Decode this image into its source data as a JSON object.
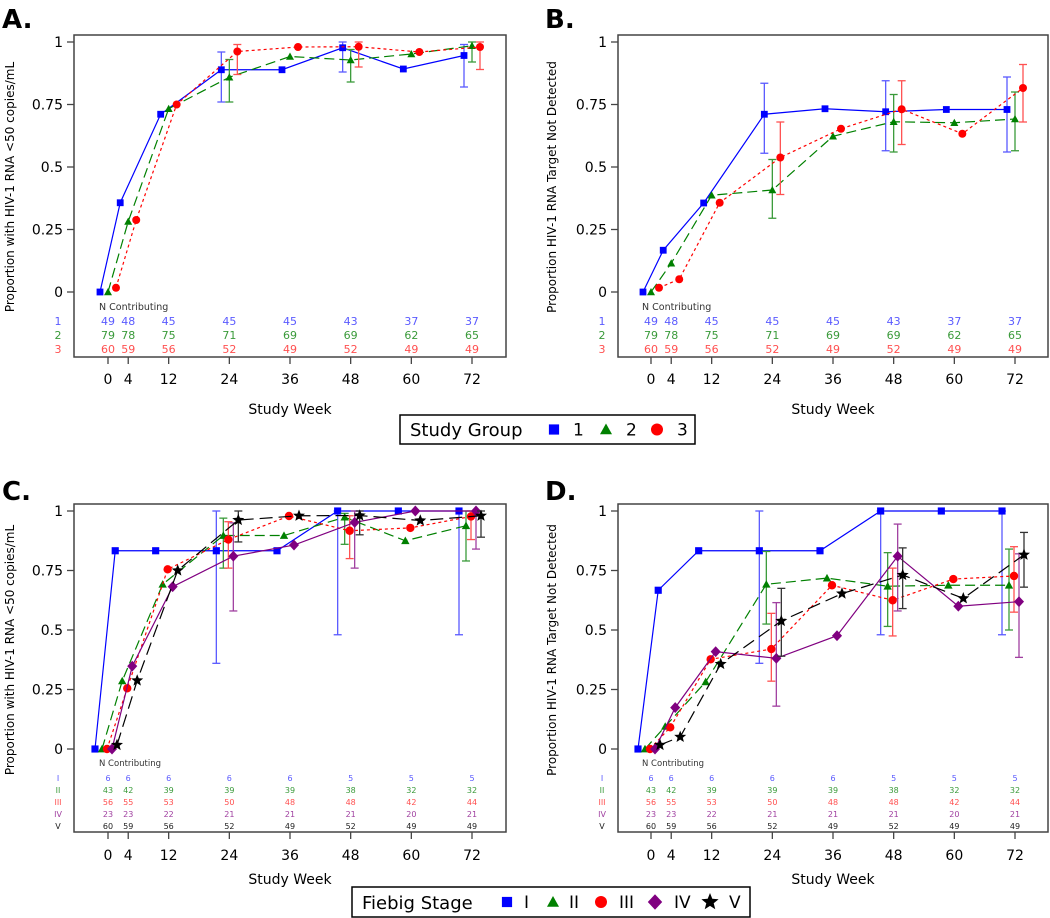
{
  "chart_data": [
    {
      "panel": "A",
      "title": "A.",
      "type": "line",
      "xlabel": "Study  Week",
      "ylabel": "Proportion with HIV-1 RNA <50 copies/mL",
      "x": [
        0,
        4,
        12,
        24,
        36,
        48,
        60,
        72
      ],
      "ylim": [
        0,
        1
      ],
      "yticks": [
        0,
        0.25,
        0.5,
        0.75,
        1
      ],
      "ytick_labels": [
        "0",
        "0.25",
        "0.5",
        "0.75",
        "1"
      ],
      "n_label": "N Contributing",
      "series": [
        {
          "name": "1",
          "color": "#0000ff",
          "marker": "square",
          "dash": "solid",
          "values": [
            0,
            0.357,
            0.711,
            0.889,
            0.889,
            0.977,
            0.892,
            0.946
          ],
          "errors": [
            null,
            null,
            null,
            [
              0.76,
              0.96
            ],
            null,
            [
              0.88,
              1.0
            ],
            null,
            [
              0.82,
              0.99
            ]
          ],
          "n": [
            49,
            48,
            45,
            45,
            45,
            43,
            37,
            37
          ]
        },
        {
          "name": "2",
          "color": "#008000",
          "marker": "triangle",
          "dash": "dashed",
          "values": [
            0,
            0.282,
            0.733,
            0.859,
            0.942,
            0.928,
            0.952,
            0.985
          ],
          "errors": [
            null,
            null,
            null,
            [
              0.76,
              0.93
            ],
            null,
            [
              0.84,
              0.97
            ],
            null,
            [
              0.92,
              1.0
            ]
          ],
          "n": [
            79,
            78,
            75,
            71,
            69,
            69,
            62,
            65
          ]
        },
        {
          "name": "3",
          "color": "#ff0000",
          "marker": "circle",
          "dash": "dotted",
          "values": [
            0.017,
            0.288,
            0.75,
            0.962,
            0.98,
            0.981,
            0.96,
            0.98
          ],
          "errors": [
            null,
            null,
            null,
            [
              0.87,
              0.99
            ],
            null,
            [
              0.9,
              1.0
            ],
            null,
            [
              0.89,
              1.0
            ]
          ],
          "n": [
            60,
            59,
            56,
            52,
            49,
            52,
            49,
            49
          ]
        }
      ]
    },
    {
      "panel": "B",
      "title": "B.",
      "type": "line",
      "xlabel": "Study  Week",
      "ylabel": "Proportion HIV-1 RNA Target Not Detected",
      "x": [
        0,
        4,
        12,
        24,
        36,
        48,
        60,
        72
      ],
      "ylim": [
        0,
        1
      ],
      "yticks": [
        0,
        0.25,
        0.5,
        0.75,
        1
      ],
      "ytick_labels": [
        "0",
        "0.25",
        "0.5",
        "0.75",
        "1"
      ],
      "n_label": "N Contributing",
      "series": [
        {
          "name": "1",
          "color": "#0000ff",
          "marker": "square",
          "dash": "solid",
          "values": [
            0,
            0.167,
            0.356,
            0.711,
            0.733,
            0.721,
            0.73,
            0.73
          ],
          "errors": [
            null,
            null,
            null,
            [
              0.555,
              0.835
            ],
            null,
            [
              0.565,
              0.845
            ],
            null,
            [
              0.56,
              0.86
            ]
          ],
          "n": [
            49,
            48,
            45,
            45,
            45,
            43,
            37,
            37
          ]
        },
        {
          "name": "2",
          "color": "#008000",
          "marker": "triangle",
          "dash": "dashed",
          "values": [
            0,
            0.115,
            0.387,
            0.408,
            0.623,
            0.681,
            0.677,
            0.692
          ],
          "errors": [
            null,
            null,
            null,
            [
              0.295,
              0.53
            ],
            null,
            [
              0.56,
              0.79
            ],
            null,
            [
              0.565,
              0.8
            ]
          ],
          "n": [
            79,
            78,
            75,
            71,
            69,
            69,
            62,
            65
          ]
        },
        {
          "name": "3",
          "color": "#ff0000",
          "marker": "circle",
          "dash": "dotted",
          "values": [
            0.017,
            0.051,
            0.357,
            0.538,
            0.653,
            0.731,
            0.633,
            0.816
          ],
          "errors": [
            null,
            null,
            null,
            [
              0.39,
              0.68
            ],
            null,
            [
              0.59,
              0.845
            ],
            null,
            [
              0.68,
              0.91
            ]
          ],
          "n": [
            60,
            59,
            56,
            52,
            49,
            52,
            49,
            49
          ]
        }
      ]
    },
    {
      "panel": "C",
      "title": "C.",
      "type": "line",
      "xlabel": "Study  Week",
      "ylabel": "Proportion with HIV-1 RNA <50 copies/mL",
      "x": [
        0,
        4,
        12,
        24,
        36,
        48,
        60,
        72
      ],
      "ylim": [
        0,
        1
      ],
      "yticks": [
        0,
        0.25,
        0.5,
        0.75,
        1
      ],
      "ytick_labels": [
        "0",
        "0.25",
        "0.5",
        "0.75",
        "1"
      ],
      "n_label": "N Contributing",
      "series": [
        {
          "name": "I",
          "color": "#0000ff",
          "marker": "square",
          "dash": "solid",
          "values": [
            0,
            0.833,
            0.833,
            0.833,
            0.833,
            1,
            1,
            1
          ],
          "errors": [
            null,
            null,
            null,
            [
              0.36,
              1.0
            ],
            null,
            [
              0.48,
              1.0
            ],
            null,
            [
              0.48,
              1.0
            ]
          ],
          "n": [
            6,
            6,
            6,
            6,
            6,
            5,
            5,
            5
          ]
        },
        {
          "name": "II",
          "color": "#008000",
          "marker": "triangle",
          "dash": "dashed",
          "values": [
            0,
            0.286,
            0.692,
            0.897,
            0.897,
            0.974,
            0.875,
            0.938
          ],
          "errors": [
            null,
            null,
            null,
            [
              0.76,
              0.97
            ],
            null,
            [
              0.86,
              0.99
            ],
            null,
            [
              0.79,
              1.0
            ]
          ],
          "n": [
            43,
            42,
            39,
            39,
            39,
            38,
            32,
            32
          ]
        },
        {
          "name": "III",
          "color": "#ff0000",
          "marker": "circle",
          "dash": "dotted",
          "values": [
            0,
            0.255,
            0.755,
            0.88,
            0.979,
            0.917,
            0.929,
            0.977
          ],
          "errors": [
            null,
            null,
            null,
            [
              0.76,
              0.955
            ],
            null,
            [
              0.8,
              0.98
            ],
            null,
            [
              0.88,
              1.0
            ]
          ],
          "n": [
            56,
            55,
            53,
            50,
            48,
            48,
            42,
            44
          ]
        },
        {
          "name": "IV",
          "color": "#800080",
          "marker": "diamond",
          "dash": "solid",
          "values": [
            0,
            0.348,
            0.682,
            0.81,
            0.857,
            0.952,
            1,
            1
          ],
          "errors": [
            null,
            null,
            null,
            [
              0.58,
              0.95
            ],
            null,
            [
              0.76,
              1.0
            ],
            null,
            [
              0.84,
              1.0
            ]
          ],
          "n": [
            23,
            23,
            22,
            21,
            21,
            21,
            20,
            21
          ]
        },
        {
          "name": "V",
          "color": "#000000",
          "marker": "star",
          "dash": "longdash",
          "values": [
            0.017,
            0.288,
            0.75,
            0.962,
            0.98,
            0.981,
            0.96,
            0.98
          ],
          "errors": [
            null,
            null,
            null,
            [
              0.87,
              1.0
            ],
            null,
            [
              0.9,
              1.0
            ],
            null,
            [
              0.89,
              1.0
            ]
          ],
          "n": [
            60,
            59,
            56,
            52,
            49,
            52,
            49,
            49
          ]
        }
      ]
    },
    {
      "panel": "D",
      "title": "D.",
      "type": "line",
      "xlabel": "Study  Week",
      "ylabel": "Proportion HIV-1 RNA Target Not Detected",
      "x": [
        0,
        4,
        12,
        24,
        36,
        48,
        60,
        72
      ],
      "ylim": [
        0,
        1
      ],
      "yticks": [
        0,
        0.25,
        0.5,
        0.75,
        1
      ],
      "ytick_labels": [
        "0",
        "0.25",
        "0.5",
        "0.75",
        "1"
      ],
      "n_label": "N Contributing",
      "series": [
        {
          "name": "I",
          "color": "#0000ff",
          "marker": "square",
          "dash": "solid",
          "values": [
            0,
            0.667,
            0.833,
            0.833,
            0.833,
            1,
            1,
            1
          ],
          "errors": [
            null,
            null,
            null,
            [
              0.36,
              1.0
            ],
            null,
            [
              0.48,
              1.0
            ],
            null,
            [
              0.48,
              1.0
            ]
          ],
          "n": [
            6,
            6,
            6,
            6,
            6,
            5,
            5,
            5
          ]
        },
        {
          "name": "II",
          "color": "#008000",
          "marker": "triangle",
          "dash": "dashed",
          "values": [
            0,
            0.095,
            0.282,
            0.692,
            0.718,
            0.684,
            0.688,
            0.688
          ],
          "errors": [
            null,
            null,
            null,
            [
              0.525,
              0.83
            ],
            null,
            [
              0.515,
              0.825
            ],
            null,
            [
              0.5,
              0.84
            ]
          ],
          "n": [
            43,
            42,
            39,
            39,
            39,
            38,
            32,
            32
          ]
        },
        {
          "name": "III",
          "color": "#ff0000",
          "marker": "circle",
          "dash": "dotted",
          "values": [
            0,
            0.091,
            0.377,
            0.42,
            0.688,
            0.625,
            0.714,
            0.727
          ],
          "errors": [
            null,
            null,
            null,
            [
              0.285,
              0.57
            ],
            null,
            [
              0.475,
              0.76
            ],
            null,
            [
              0.575,
              0.85
            ]
          ],
          "n": [
            56,
            55,
            53,
            50,
            48,
            48,
            42,
            44
          ]
        },
        {
          "name": "IV",
          "color": "#800080",
          "marker": "diamond",
          "dash": "solid",
          "values": [
            0,
            0.174,
            0.409,
            0.381,
            0.476,
            0.81,
            0.6,
            0.619
          ],
          "errors": [
            null,
            null,
            null,
            [
              0.18,
              0.615
            ],
            null,
            [
              0.58,
              0.945
            ],
            null,
            [
              0.385,
              0.82
            ]
          ],
          "n": [
            23,
            23,
            22,
            21,
            21,
            21,
            20,
            21
          ]
        },
        {
          "name": "V",
          "color": "#000000",
          "marker": "star",
          "dash": "longdash",
          "values": [
            0.017,
            0.051,
            0.357,
            0.538,
            0.653,
            0.731,
            0.633,
            0.816
          ],
          "errors": [
            null,
            null,
            null,
            [
              0.39,
              0.675
            ],
            null,
            [
              0.59,
              0.845
            ],
            null,
            [
              0.68,
              0.91
            ]
          ],
          "n": [
            60,
            59,
            56,
            52,
            49,
            52,
            49,
            49
          ]
        }
      ]
    }
  ],
  "legends": {
    "study_group": {
      "title": "Study  Group",
      "panels": "A,B"
    },
    "fiebig": {
      "title": "Fiebig  Stage",
      "panels": "C,D"
    }
  }
}
